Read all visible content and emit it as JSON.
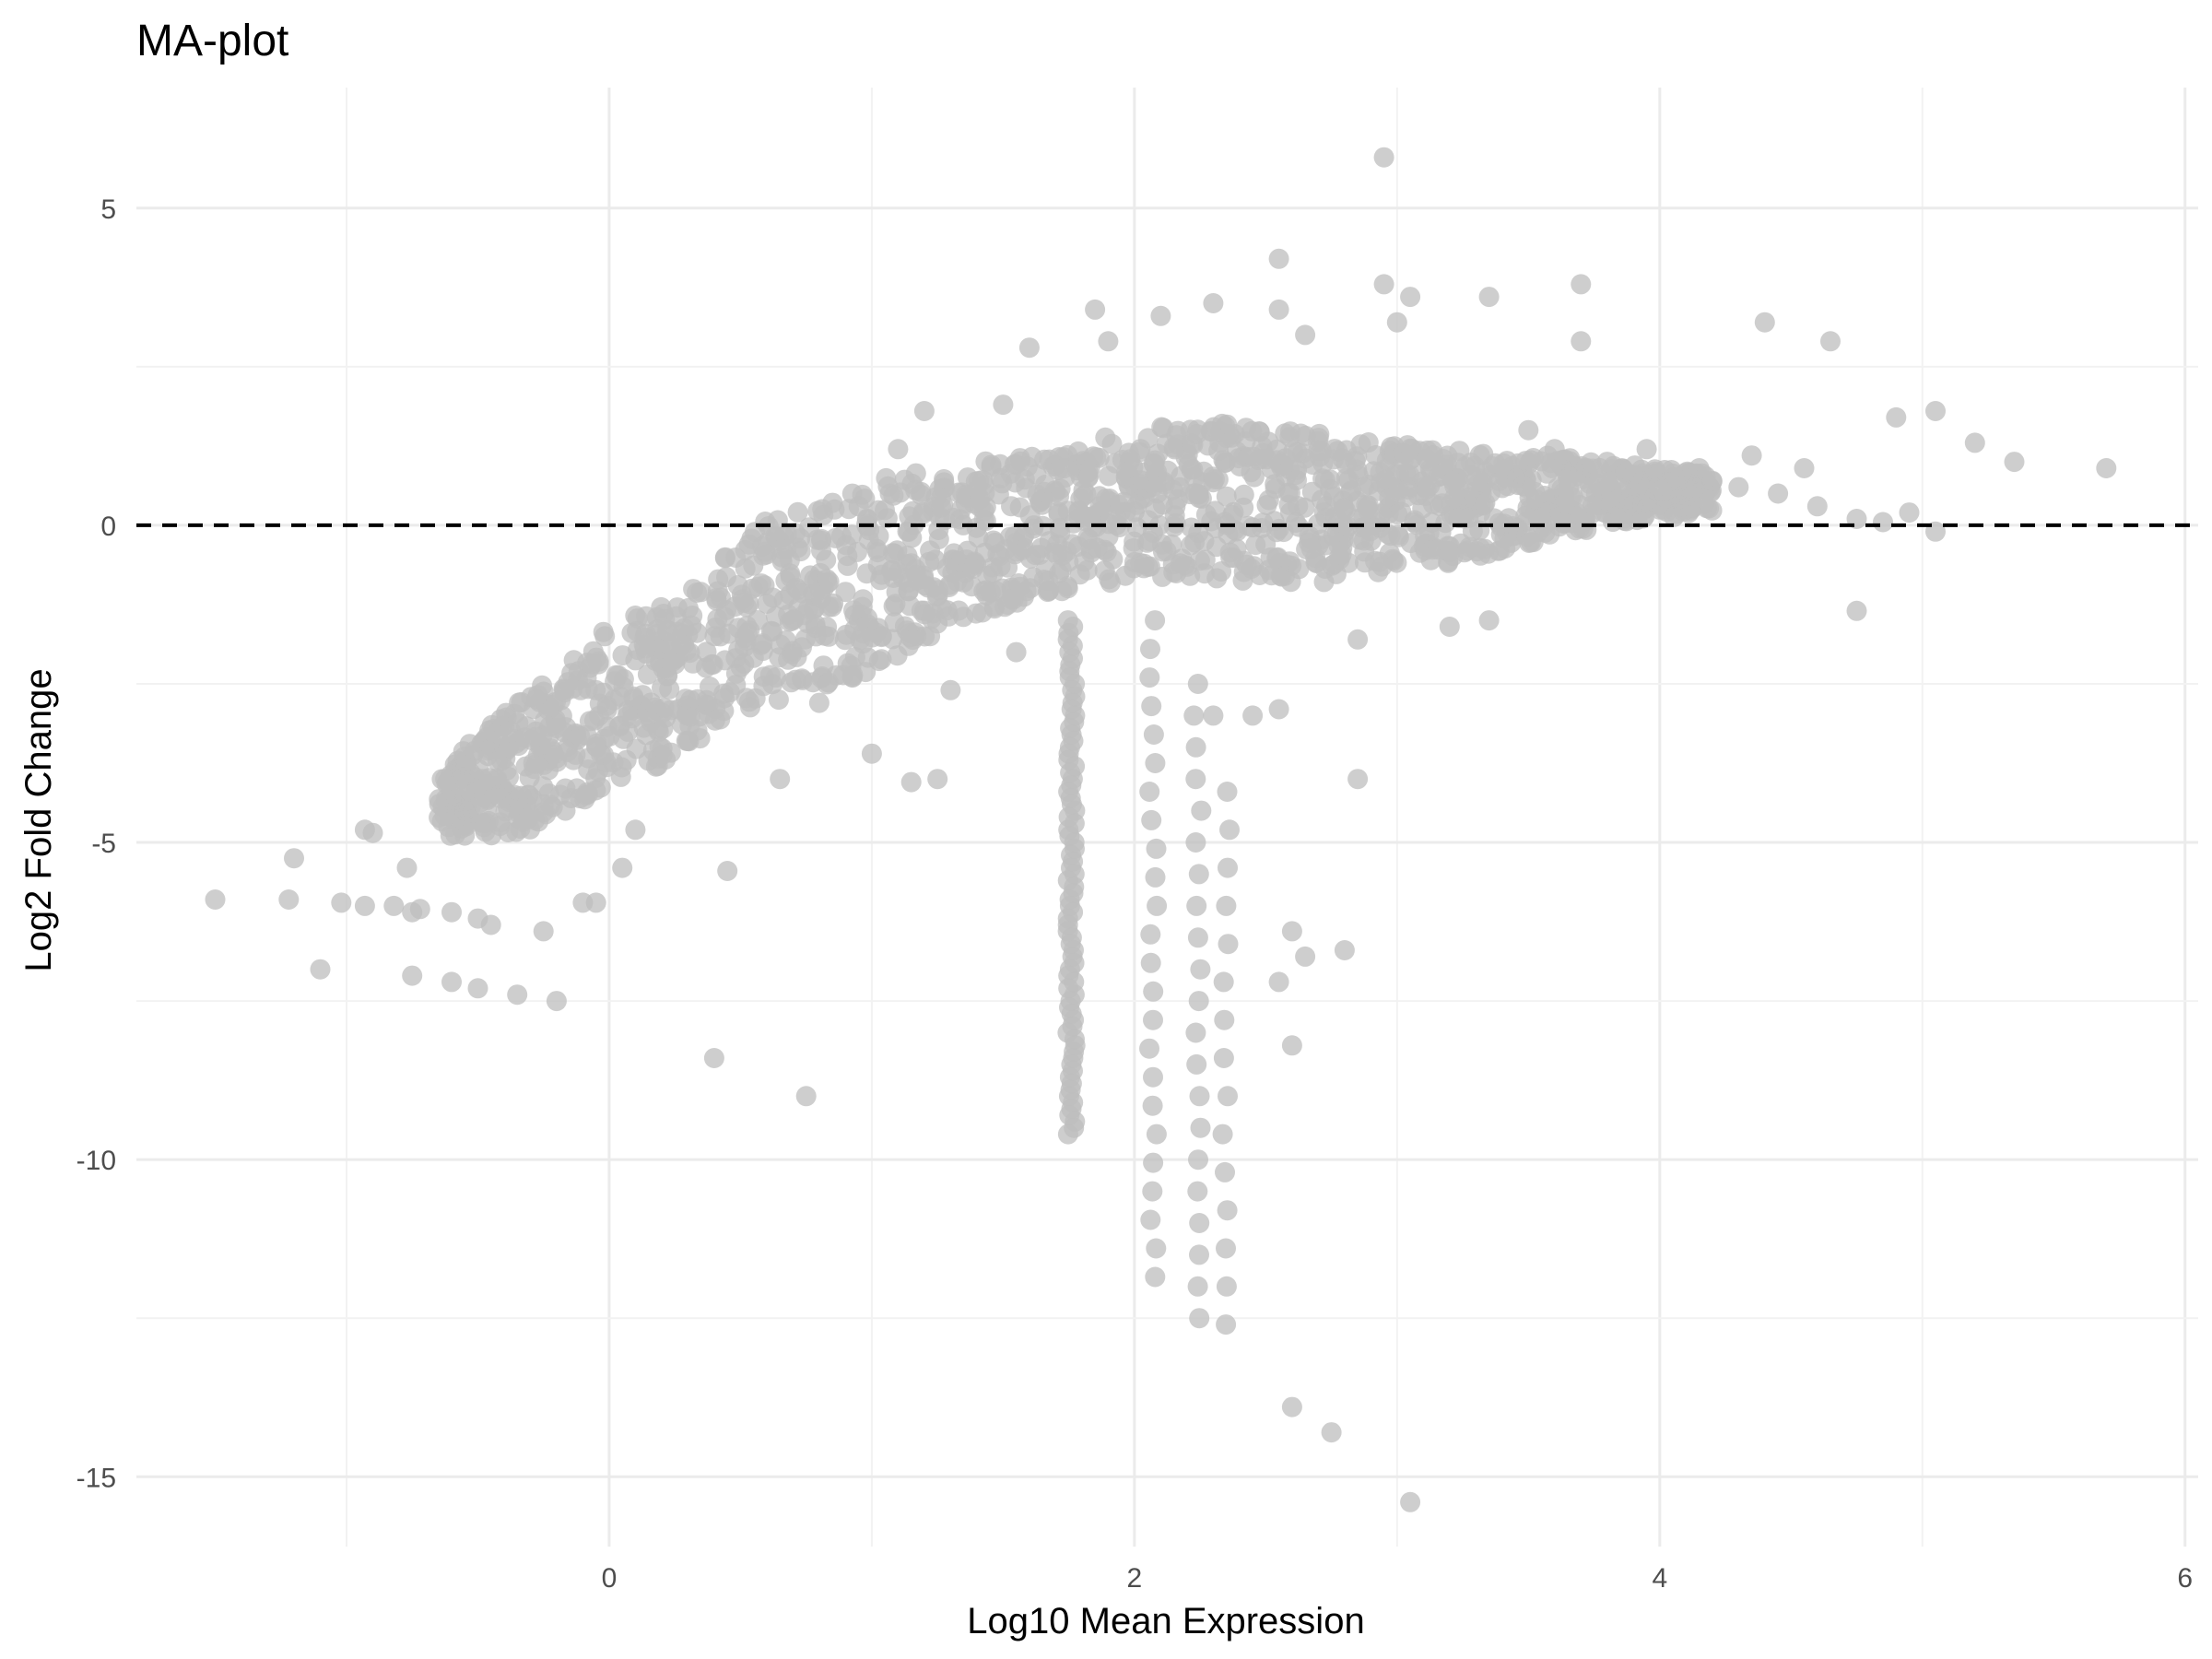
{
  "chart_data": {
    "type": "scatter",
    "title": "MA-plot",
    "xlabel": "Log10 Mean Expression",
    "ylabel": "Log2 Fold Change",
    "xlim": [
      -1.8,
      6.05
    ],
    "ylim": [
      -16.1,
      6.9
    ],
    "xticks": [
      0,
      2,
      4,
      6
    ],
    "yticks": [
      5,
      0,
      -5,
      -10,
      -15
    ],
    "grid": true,
    "point_color": "#bebebe",
    "reference_line": {
      "y": 0,
      "style": "dashed",
      "color": "#000000"
    },
    "points": [
      [
        -1.5,
        -5.9
      ],
      [
        -1.2,
        -5.25
      ],
      [
        -1.22,
        -5.9
      ],
      [
        -1.02,
        -5.95
      ],
      [
        -1.1,
        -7.0
      ],
      [
        -0.93,
        -4.8
      ],
      [
        -0.9,
        -4.85
      ],
      [
        -0.93,
        -6.0
      ],
      [
        -0.82,
        -6.0
      ],
      [
        -0.77,
        -5.4
      ],
      [
        -0.75,
        -6.1
      ],
      [
        -0.72,
        -6.05
      ],
      [
        -0.75,
        -7.1
      ],
      [
        -0.6,
        -6.1
      ],
      [
        -0.6,
        -7.2
      ],
      [
        -0.5,
        -6.2
      ],
      [
        -0.45,
        -6.3
      ],
      [
        -0.5,
        -7.3
      ],
      [
        -0.35,
        -7.4
      ],
      [
        -0.25,
        -6.4
      ],
      [
        -0.2,
        -7.5
      ],
      [
        -0.1,
        -5.95
      ],
      [
        -0.05,
        -5.95
      ],
      [
        -0.6,
        -4.3
      ],
      [
        -0.55,
        -4.5
      ],
      [
        -0.4,
        -3.5
      ],
      [
        -0.2,
        -3.2
      ],
      [
        0.1,
        -4.8
      ],
      [
        0.05,
        -5.4
      ],
      [
        0.45,
        -5.45
      ],
      [
        0.4,
        -8.4
      ],
      [
        0.75,
        -9.0
      ],
      [
        0.65,
        -4.0
      ],
      [
        1.25,
        -4.0
      ],
      [
        1.15,
        -4.05
      ],
      [
        1.3,
        -2.6
      ],
      [
        1.0,
        -3.6
      ],
      [
        0.8,
        -2.8
      ],
      [
        0.95,
        0.3
      ],
      [
        1.1,
        1.2
      ],
      [
        1.2,
        1.8
      ],
      [
        1.6,
        2.8
      ],
      [
        1.5,
        1.9
      ],
      [
        2.3,
        -3.0
      ],
      [
        2.45,
        -3.0
      ],
      [
        2.55,
        -2.9
      ],
      [
        2.6,
        -6.4
      ],
      [
        2.65,
        -6.8
      ],
      [
        2.55,
        -7.2
      ],
      [
        2.6,
        -8.2
      ],
      [
        2.8,
        -6.7
      ],
      [
        2.85,
        -4.0
      ],
      [
        2.6,
        -13.9
      ],
      [
        2.75,
        -14.3
      ],
      [
        3.05,
        -15.4
      ],
      [
        2.95,
        5.8
      ],
      [
        2.55,
        4.2
      ],
      [
        2.95,
        3.8
      ],
      [
        3.05,
        3.6
      ],
      [
        3.35,
        3.6
      ],
      [
        3.7,
        3.8
      ],
      [
        3.7,
        2.9
      ],
      [
        4.4,
        3.2
      ],
      [
        4.65,
        2.9
      ],
      [
        4.9,
        1.7
      ],
      [
        5.05,
        1.8
      ],
      [
        5.2,
        1.3
      ],
      [
        5.35,
        1.0
      ],
      [
        5.7,
        0.9
      ],
      [
        5.05,
        -0.1
      ],
      [
        4.75,
        -1.35
      ],
      [
        3.35,
        -1.5
      ],
      [
        3.2,
        -1.6
      ],
      [
        1.85,
        3.4
      ],
      [
        1.9,
        2.9
      ],
      [
        2.1,
        3.3
      ],
      [
        2.3,
        3.5
      ],
      [
        2.55,
        3.4
      ],
      [
        2.65,
        3.0
      ],
      [
        3.0,
        3.2
      ],
      [
        1.15,
        -0.6
      ],
      [
        1.35,
        -0.9
      ],
      [
        1.55,
        -2.0
      ],
      [
        1.2,
        -1.4
      ],
      [
        2.85,
        -1.8
      ],
      [
        3.5,
        1.5
      ],
      [
        3.6,
        1.2
      ],
      [
        3.8,
        1.0
      ],
      [
        3.9,
        0.8
      ],
      [
        4.05,
        0.6
      ],
      [
        4.2,
        0.7
      ],
      [
        4.3,
        0.6
      ],
      [
        4.45,
        0.5
      ],
      [
        4.6,
        0.3
      ],
      [
        4.75,
        0.1
      ],
      [
        4.85,
        0.05
      ],
      [
        4.95,
        0.2
      ],
      [
        4.55,
        0.9
      ],
      [
        4.35,
        1.1
      ],
      [
        4.15,
        0.9
      ],
      [
        3.95,
        1.2
      ]
    ],
    "dense_band": [
      [
        -0.65,
        -4.9,
        -4.0
      ],
      [
        -0.5,
        -4.9,
        -3.3
      ],
      [
        -0.35,
        -4.9,
        -2.8
      ],
      [
        -0.2,
        -4.6,
        -2.3
      ],
      [
        0.0,
        -4.1,
        -1.6
      ],
      [
        0.2,
        -3.8,
        -1.2
      ],
      [
        0.4,
        -3.2,
        -0.6
      ],
      [
        0.6,
        -2.8,
        0.2
      ],
      [
        0.8,
        -2.6,
        0.4
      ],
      [
        1.0,
        -2.3,
        0.7
      ],
      [
        1.2,
        -1.8,
        0.9
      ],
      [
        1.4,
        -1.4,
        1.0
      ],
      [
        1.6,
        -1.2,
        1.1
      ],
      [
        1.8,
        -1.0,
        1.3
      ],
      [
        2.0,
        -0.9,
        1.5
      ],
      [
        2.2,
        -0.8,
        1.6
      ],
      [
        2.4,
        -0.9,
        1.6
      ],
      [
        2.6,
        -0.9,
        1.5
      ],
      [
        2.8,
        -0.9,
        1.4
      ],
      [
        3.0,
        -0.7,
        1.3
      ],
      [
        3.2,
        -0.6,
        1.2
      ],
      [
        3.4,
        -0.4,
        1.1
      ],
      [
        3.6,
        -0.2,
        1.1
      ],
      [
        3.8,
        0.0,
        1.0
      ],
      [
        4.0,
        0.1,
        0.9
      ],
      [
        4.2,
        0.2,
        0.8
      ]
    ],
    "vertical_streaks": [
      {
        "x": 1.76,
        "y_top": -1.5,
        "y_bottom": -9.6,
        "step": 0.1
      },
      {
        "x": 2.07,
        "y_top": -1.5,
        "y_bottom": -12.0,
        "step": 0.45
      },
      {
        "x": 2.24,
        "y_top": -2.5,
        "y_bottom": -12.6,
        "step": 0.5
      },
      {
        "x": 2.35,
        "y_top": -4.2,
        "y_bottom": -13.1,
        "step": 0.6
      }
    ]
  }
}
